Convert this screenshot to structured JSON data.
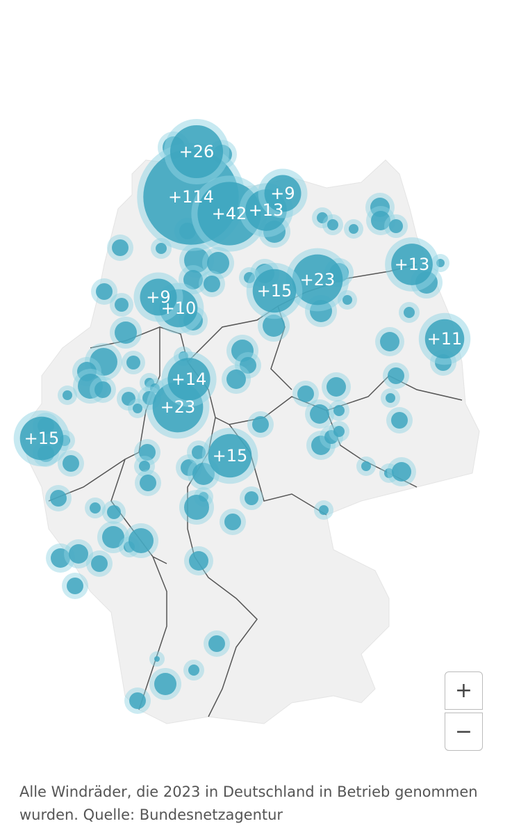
{
  "map": {
    "clusters": [
      {
        "label": "+26",
        "count": 26
      },
      {
        "label": "+114",
        "count": 114
      },
      {
        "label": "+42",
        "count": 42
      },
      {
        "label": "+13",
        "count": 13
      },
      {
        "label": "+9",
        "count": 9
      },
      {
        "label": "+13",
        "count": 13
      },
      {
        "label": "+23",
        "count": 23
      },
      {
        "label": "+15",
        "count": 15
      },
      {
        "label": "+9",
        "count": 9
      },
      {
        "label": "+10",
        "count": 10
      },
      {
        "label": "+11",
        "count": 11
      },
      {
        "label": "+14",
        "count": 14
      },
      {
        "label": "+23",
        "count": 23
      },
      {
        "label": "+15",
        "count": 15
      },
      {
        "label": "+15",
        "count": 15
      }
    ],
    "zoom_in": "+",
    "zoom_out": "−",
    "caption": "Alle Windräder, die 2023 in Deutschland in Betrieb genommen wurden. Quelle: Bundesnetzagentur"
  }
}
